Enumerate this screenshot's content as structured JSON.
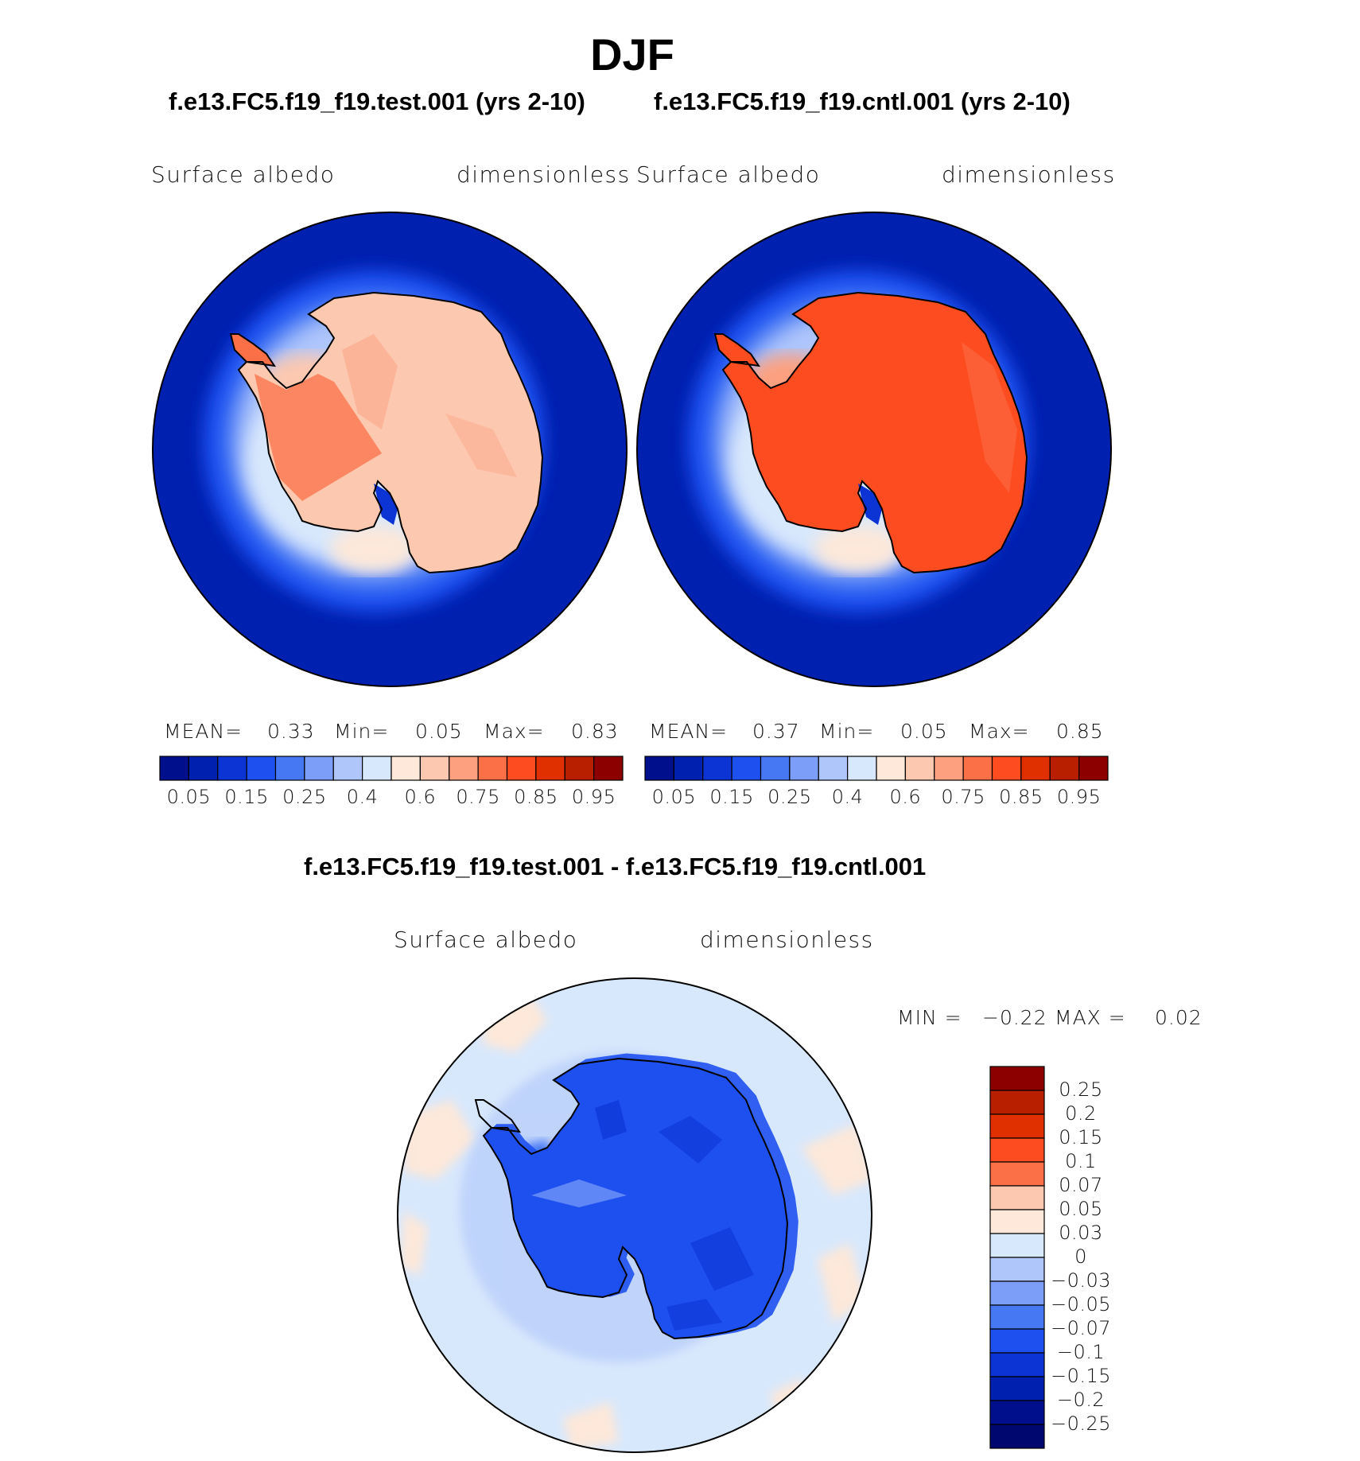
{
  "title": "DJF",
  "panels": {
    "test": {
      "case_title": "f.e13.FC5.f19_f19.test.001 (yrs 2-10)",
      "variable": "Surface  albedo",
      "units": "dimensionless",
      "mean_label": "MEAN=",
      "mean": "0.33",
      "min_label": "Min=",
      "min": "0.05",
      "max_label": "Max=",
      "max": "0.83",
      "land_level": "0.6-0.75"
    },
    "cntl": {
      "case_title": "f.e13.FC5.f19_f19.cntl.001 (yrs 2-10)",
      "variable": "Surface  albedo",
      "units": "dimensionless",
      "mean_label": "MEAN=",
      "mean": "0.37",
      "min_label": "Min=",
      "min": "0.05",
      "max_label": "Max=",
      "max": "0.85",
      "land_level": "0.8-0.85"
    },
    "diff": {
      "case_title": "f.e13.FC5.f19_f19.test.001 - f.e13.FC5.f19_f19.cntl.001",
      "variable": "Surface  albedo",
      "units": "dimensionless",
      "min_label": "MIN =",
      "min": "−0.22",
      "max_label": "MAX =",
      "max": "0.02"
    }
  },
  "albedo_colorbar": {
    "colors": [
      "#000f8c",
      "#0020b0",
      "#0c34d4",
      "#1e50f0",
      "#4678f4",
      "#7c9ef8",
      "#afc6fb",
      "#d8e8fc",
      "#fde8d9",
      "#fcc8b0",
      "#fca080",
      "#fc7048",
      "#fc4c20",
      "#e03000",
      "#b81e00",
      "#8c0000"
    ],
    "tick_labels": [
      "0.05",
      "0.15",
      "0.25",
      "0.4",
      "0.6",
      "0.75",
      "0.85",
      "0.95"
    ]
  },
  "diff_colorbar": {
    "colors": [
      "#8c0000",
      "#b81e00",
      "#e03000",
      "#fc4c20",
      "#fc7048",
      "#fcc8b0",
      "#fde8d9",
      "#d8e8fc",
      "#afc6fb",
      "#7c9ef8",
      "#4678f4",
      "#1e50f0",
      "#0c34d4",
      "#0020b0",
      "#000f8c",
      "#000870"
    ],
    "tick_labels": [
      "0.25",
      "0.2",
      "0.15",
      "0.1",
      "0.07",
      "0.05",
      "0.03",
      "0",
      "−0.03",
      "−0.05",
      "−0.07",
      "−0.1",
      "−0.15",
      "−0.2",
      "−0.25"
    ]
  }
}
